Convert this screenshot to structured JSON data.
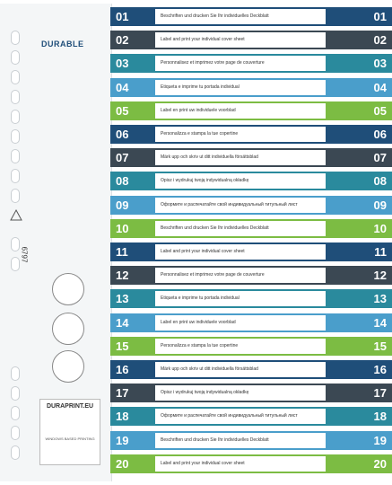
{
  "brand": "DURABLE",
  "product_code": "6797",
  "print_service": {
    "title": "DURAPRINT.EU",
    "caption": "WINDOWS BASED PRINTING"
  },
  "tabs": [
    {
      "number": "01",
      "text": "Beschriften und drucken Sie Ihr individuelles Deckblatt",
      "color": "#1f4e79"
    },
    {
      "number": "02",
      "text": "Label and print your individual cover sheet",
      "color": "#3b4853"
    },
    {
      "number": "03",
      "text": "Personnalisez et imprimez votre page de couverture",
      "color": "#2a8a9d"
    },
    {
      "number": "04",
      "text": "Etiqueta e imprime tu portada individual",
      "color": "#4a9ecb"
    },
    {
      "number": "05",
      "text": "Label en print uw individuele voorblad",
      "color": "#7cbc43"
    },
    {
      "number": "06",
      "text": "Personalizza e stampa la tue copertine",
      "color": "#1f4e79"
    },
    {
      "number": "07",
      "text": "Märk upp och skriv ut ditt individuella försättsblad",
      "color": "#3b4853"
    },
    {
      "number": "08",
      "text": "Opisz i wydrukuj twoją indywidualną okładkę",
      "color": "#2a8a9d"
    },
    {
      "number": "09",
      "text": "Оформите и распечатайте свой индивидуальный титульный лист",
      "color": "#4a9ecb"
    },
    {
      "number": "10",
      "text": "Beschriften und drucken Sie Ihr individuelles Deckblatt",
      "color": "#7cbc43"
    },
    {
      "number": "11",
      "text": "Label and print your individual cover sheet",
      "color": "#1f4e79"
    },
    {
      "number": "12",
      "text": "Personnalisez et imprimez votre page de couverture",
      "color": "#3b4853"
    },
    {
      "number": "13",
      "text": "Etiqueta e imprime tu portada individual",
      "color": "#2a8a9d"
    },
    {
      "number": "14",
      "text": "Label en print uw individuele voorblad",
      "color": "#4a9ecb"
    },
    {
      "number": "15",
      "text": "Personalizza e stampa la tue copertine",
      "color": "#7cbc43"
    },
    {
      "number": "16",
      "text": "Märk upp och skriv ut ditt individuella försättsblad",
      "color": "#1f4e79"
    },
    {
      "number": "17",
      "text": "Opisz i wydrukuj twoją indywidualną okładkę",
      "color": "#3b4853"
    },
    {
      "number": "18",
      "text": "Оформите и распечатайте свой индивидуальный титульный лист",
      "color": "#2a8a9d"
    },
    {
      "number": "19",
      "text": "Beschriften und drucken Sie Ihr individuelles Deckblatt",
      "color": "#4a9ecb"
    },
    {
      "number": "20",
      "text": "Label and print your individual cover sheet",
      "color": "#7cbc43"
    }
  ]
}
